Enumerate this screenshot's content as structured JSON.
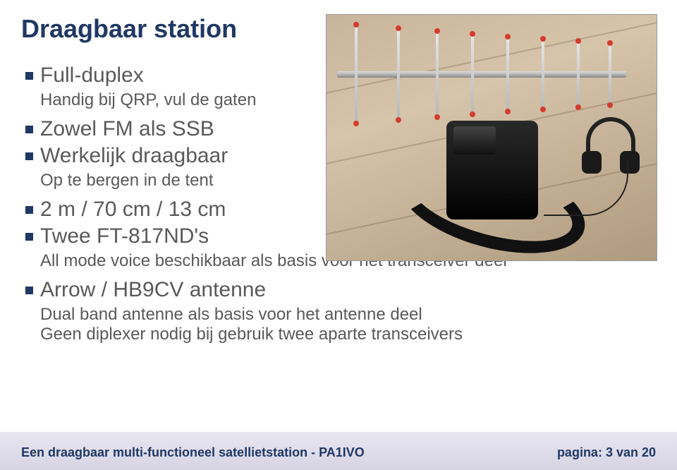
{
  "title": {
    "text": "Draagbaar station",
    "color": "#1f3864",
    "fontsize": 36
  },
  "items": [
    {
      "main": "Full-duplex",
      "sub": "Handig bij QRP, vul de gaten"
    },
    {
      "main": "Zowel FM als SSB",
      "sub": ""
    },
    {
      "main": "Werkelijk draagbaar",
      "sub": "Op te bergen in de tent"
    },
    {
      "main": "2 m / 70 cm / 13 cm",
      "sub": ""
    },
    {
      "main": "Twee FT-817ND's",
      "sub": "All mode voice beschikbaar als basis voor het transceiver deel"
    },
    {
      "main": "Arrow / HB9CV antenne",
      "sub": "Dual band antenne als basis voor het antenne deel\nGeen diplexer nodig bij gebruik twee aparte transceivers"
    }
  ],
  "style": {
    "bullet_color": "#1f3864",
    "main_fontsize": 30,
    "main_color": "#595959",
    "sub_fontsize": 24,
    "sub_color": "#595959"
  },
  "footer": {
    "left": "Een draagbaar multi-functioneel satellietstation - PA1IVO",
    "right": "pagina: 3 van 20",
    "fontsize": 18,
    "color": "#1f3864"
  },
  "photo": {
    "description": "Portable satellite station with Arrow yagi antenna, radio bag and headphones on wooden floor",
    "element_positions": [
      40,
      100,
      155,
      205,
      255,
      305,
      355,
      400
    ],
    "element_heights": [
      138,
      128,
      120,
      112,
      104,
      98,
      92,
      86
    ],
    "tip_color": "#d43c2e",
    "boom_color_top": "#dddddd",
    "boom_color_bot": "#888888",
    "floor_colors": [
      "#c8b49a",
      "#d6c4ab",
      "#b09a7e"
    ]
  }
}
